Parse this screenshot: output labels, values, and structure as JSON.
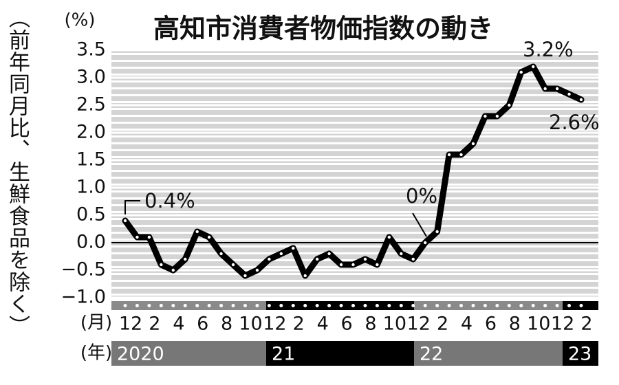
{
  "chart_data": {
    "type": "line",
    "title": "高知市消費者物価指数の動き",
    "y_label": "（前年同月比、生鮮食品を除く）",
    "y_unit": "(%)",
    "month_label": "(月)",
    "year_label": "(年)",
    "categories": [
      "12",
      null,
      "2",
      null,
      "4",
      null,
      "6",
      null,
      "8",
      null,
      "10",
      null,
      "12",
      null,
      "2",
      null,
      "4",
      null,
      "6",
      null,
      "8",
      null,
      "10",
      null,
      "12",
      null,
      "2",
      null,
      "4",
      null,
      "6",
      null,
      "8",
      null,
      "10",
      null,
      "12",
      null,
      "2"
    ],
    "years": [
      "2020",
      "21",
      "22",
      "23"
    ],
    "series": [
      {
        "name": "消費者物価指数",
        "color": "#000000",
        "values": [
          0.4,
          0.1,
          0.1,
          -0.4,
          -0.5,
          -0.3,
          0.2,
          0.1,
          -0.2,
          -0.4,
          -0.6,
          -0.5,
          -0.3,
          -0.2,
          -0.1,
          -0.6,
          -0.3,
          -0.2,
          -0.4,
          -0.4,
          -0.3,
          -0.4,
          0.1,
          -0.2,
          -0.3,
          0.0,
          0.2,
          1.6,
          1.6,
          1.8,
          2.3,
          2.3,
          2.5,
          3.1,
          3.2,
          2.8,
          2.8,
          2.7,
          2.6
        ]
      }
    ],
    "annotations": [
      "0.4%",
      "0%",
      "3.2%",
      "2.6%"
    ],
    "ylim": [
      -1.0,
      3.5
    ],
    "yticks": [
      3.5,
      {
        "value": 3,
        "label": "3.0"
      },
      2.5,
      {
        "value": 2,
        "label": "2.0"
      },
      1.5,
      {
        "value": 1,
        "label": "1.0"
      },
      0.5,
      {
        "value": 0,
        "label": "0.0"
      },
      {
        "value": -0.5,
        "label": "−0.5"
      },
      {
        "value": -1,
        "label": "−1.0"
      }
    ],
    "grid": true
  }
}
